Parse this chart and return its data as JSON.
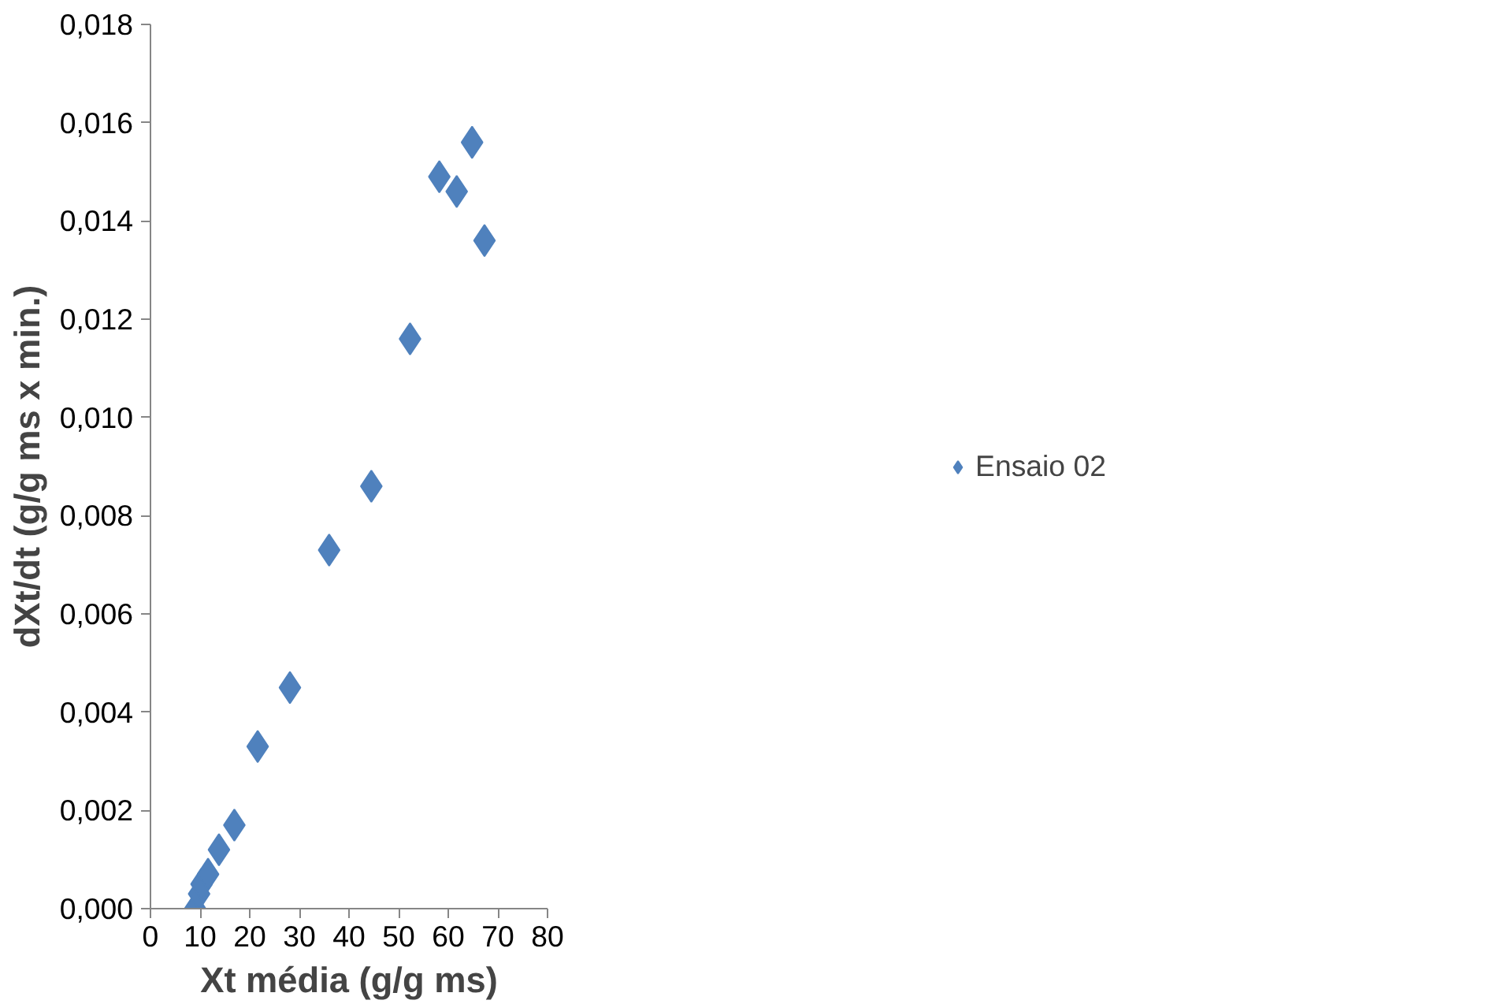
{
  "chart_data": {
    "type": "scatter",
    "xlabel": "Xt média (g/g ms)",
    "ylabel": "dXt/dt (g/g ms x min.)",
    "series": [
      {
        "name": "Ensaio 02",
        "color": "#4f81bd",
        "x": [
          9.0,
          9.8,
          10.3,
          11.6,
          13.8,
          16.9,
          21.6,
          28.1,
          36.0,
          44.5,
          52.3,
          58.2,
          61.7,
          64.8,
          67.3
        ],
        "values": [
          0.0,
          0.0003,
          0.0005,
          0.0007,
          0.0012,
          0.0017,
          0.0033,
          0.0045,
          0.0073,
          0.0086,
          0.0116,
          0.0149,
          0.0146,
          0.0156,
          0.0136
        ]
      }
    ],
    "xlim": [
      0,
      80
    ],
    "xticks": [
      0,
      10,
      20,
      30,
      40,
      50,
      60,
      70,
      80
    ],
    "ylim": [
      0,
      0.018
    ],
    "yticks": [
      {
        "value": 0,
        "label": "0,000"
      },
      {
        "value": 0.002,
        "label": "0,002"
      },
      {
        "value": 0.004,
        "label": "0,004"
      },
      {
        "value": 0.006,
        "label": "0,006"
      },
      {
        "value": 0.008,
        "label": "0,008"
      },
      {
        "value": 0.01,
        "label": "0,010"
      },
      {
        "value": 0.012,
        "label": "0,012"
      },
      {
        "value": 0.014,
        "label": "0,014"
      },
      {
        "value": 0.016,
        "label": "0,016"
      },
      {
        "value": 0.018,
        "label": "0,018"
      }
    ],
    "grid": false,
    "legend": "right",
    "marker": "diamond"
  }
}
